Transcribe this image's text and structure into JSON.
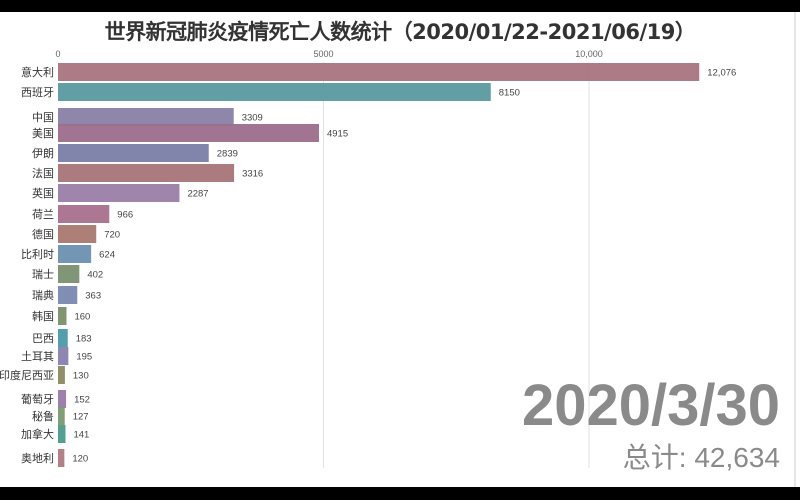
{
  "chart_data": {
    "type": "bar",
    "orientation": "horizontal",
    "title": "世界新冠肺炎疫情死亡人数统计（2020/01/22-2021/06/19）",
    "xlim": [
      0,
      12500
    ],
    "x_ticks": [
      {
        "value": 0,
        "label": "0"
      },
      {
        "value": 5000,
        "label": "5000"
      },
      {
        "value": 10000,
        "label": "10,000"
      }
    ],
    "grid": true,
    "categories": [
      "意大利",
      "西班牙",
      "中国",
      "美国",
      "伊朗",
      "法国",
      "英国",
      "荷兰",
      "德国",
      "比利时",
      "瑞士",
      "瑞典",
      "韩国",
      "巴西",
      "土耳其",
      "印度尼西亚",
      "葡萄牙",
      "秘鲁",
      "加拿大",
      "奥地利"
    ],
    "values": [
      12076,
      8150,
      3309,
      4915,
      2839,
      3316,
      2287,
      966,
      720,
      624,
      402,
      363,
      160,
      183,
      195,
      130,
      152,
      127,
      141,
      120
    ],
    "value_labels": [
      "12,076",
      "8150",
      "3309",
      "4915",
      "2839",
      "3316",
      "2287",
      "966",
      "720",
      "624",
      "402",
      "363",
      "160",
      "183",
      "195",
      "130",
      "152",
      "127",
      "141",
      "120"
    ],
    "colors": [
      "#a87480",
      "#5a9aa0",
      "#8a7fa8",
      "#9c6e8c",
      "#7a7ea8",
      "#a87478",
      "#9a7ea8",
      "#a8708c",
      "#a87870",
      "#6a90b0",
      "#7a9070",
      "#7a88b0",
      "#7a9068",
      "#4a9aa8",
      "#8a80b0",
      "#8a8a60",
      "#9a78a8",
      "#7a9a70",
      "#4a9a8a",
      "#b07880"
    ],
    "date": "2020/3/30",
    "total": "总计: 42,634"
  }
}
